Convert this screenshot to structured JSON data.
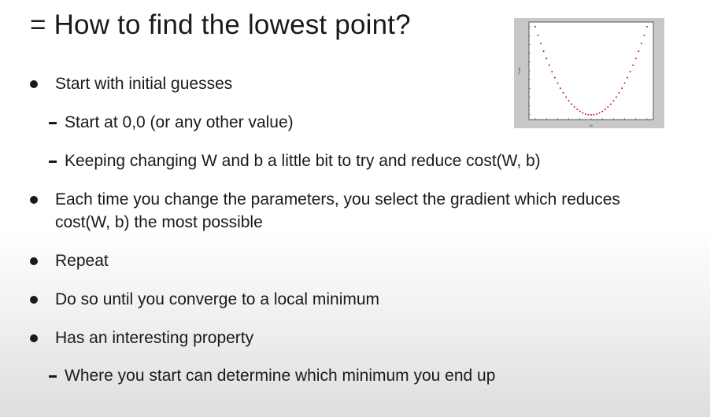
{
  "slide": {
    "title": "= How to find the lowest point?",
    "items": [
      {
        "level": 1,
        "text": "Start with initial guesses"
      },
      {
        "level": 2,
        "text": "Start at 0,0 (or any other value)"
      },
      {
        "level": 2,
        "text": "Keeping changing W and b a little bit to try and reduce cost(W, b)"
      },
      {
        "level": 1,
        "text": "Each time you change the parameters, you select the gradient which reduces",
        "continuation": "cost(W, b) the most possible"
      },
      {
        "level": 1,
        "text": "Repeat"
      },
      {
        "level": 1,
        "text": "Do so until you converge to a local minimum"
      },
      {
        "level": 1,
        "text": "Has an interesting property"
      },
      {
        "level": 2,
        "text": "Where you start can determine which minimum you end up"
      }
    ]
  },
  "chart_data": {
    "type": "scatter",
    "title": "",
    "xlabel": "W",
    "ylabel": "Cost",
    "x": [
      -5,
      -4.75,
      -4.5,
      -4.25,
      -4,
      -3.75,
      -3.5,
      -3.25,
      -3,
      -2.75,
      -2.5,
      -2.25,
      -2,
      -1.75,
      -1.5,
      -1.25,
      -1,
      -0.75,
      -0.5,
      -0.25,
      0,
      0.25,
      0.5,
      0.75,
      1,
      1.25,
      1.5,
      1.75,
      2,
      2.25,
      2.5,
      2.75,
      3,
      3.25,
      3.5,
      3.75,
      4,
      4.25,
      4.5,
      4.75,
      5
    ],
    "y": [
      100,
      90.25,
      81,
      72.25,
      64,
      56.25,
      49,
      42.25,
      36,
      30.25,
      25,
      20.25,
      16,
      12.25,
      9,
      6.25,
      4,
      2.25,
      1,
      0.25,
      0,
      0.25,
      1,
      2.25,
      4,
      6.25,
      9,
      12.25,
      16,
      20.25,
      25,
      30.25,
      36,
      42.25,
      49,
      56.25,
      64,
      72.25,
      81,
      90.25,
      100
    ],
    "xlim": [
      -5,
      5
    ],
    "ylim": [
      0,
      100
    ],
    "marker_color": "#b0121b",
    "background_color": "#c8c8c8",
    "plot_area_color": "#ffffff",
    "grid": false
  }
}
